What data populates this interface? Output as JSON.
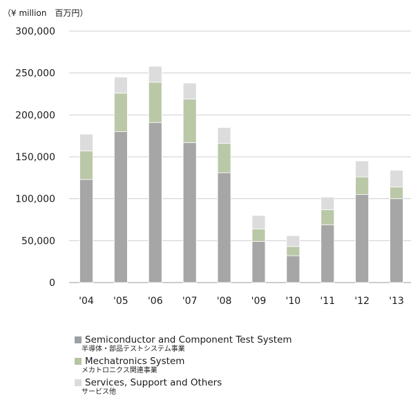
{
  "unit_label": "（¥ million　百万円）",
  "colors": {
    "semiconductor": "#a6a6a6",
    "mechatronics": "#bac8a8",
    "services": "#dcdcdc",
    "grid": "#cfcfcf",
    "axis": "#9a9a9a"
  },
  "chart_data": {
    "type": "bar",
    "stacked": true,
    "categories": [
      "'04",
      "'05",
      "'06",
      "'07",
      "'08",
      "'09",
      "'10",
      "'11",
      "'12",
      "'13"
    ],
    "series": [
      {
        "name": "Semiconductor and Component Test System",
        "name_ja": "半導体・部品テストシステム事業",
        "color": "#a6a6a6",
        "values": [
          123000,
          180000,
          191000,
          167000,
          131000,
          49000,
          32000,
          69000,
          105000,
          100000
        ]
      },
      {
        "name": "Mechatronics System",
        "name_ja": "メカトロニクス関連事業",
        "color": "#bac8a8",
        "values": [
          34000,
          46000,
          48000,
          52000,
          35000,
          15000,
          11000,
          18000,
          21000,
          14000
        ]
      },
      {
        "name": "Services, Support and Others",
        "name_ja": "サービス他",
        "color": "#dcdcdc",
        "values": [
          20000,
          19000,
          19000,
          19000,
          19000,
          16000,
          13000,
          15000,
          19000,
          20000
        ]
      }
    ],
    "y_ticks": [
      "0",
      "50,000",
      "100,000",
      "150,000",
      "200,000",
      "250,000",
      "300,000"
    ],
    "ylim": [
      0,
      300000
    ],
    "grid": true,
    "legend_position": "bottom-left"
  }
}
